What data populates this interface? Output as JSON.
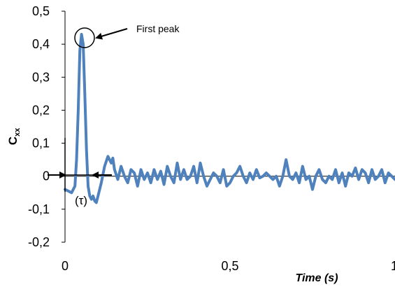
{
  "chart_data": {
    "type": "line",
    "title": "",
    "xlabel": "Time (s)",
    "ylabel_main": "C",
    "ylabel_sub": "xx",
    "xlim": [
      0,
      1
    ],
    "ylim": [
      -0.2,
      0.5
    ],
    "x_ticks": [
      "0",
      "0,5",
      "1"
    ],
    "y_ticks": [
      "0,5",
      "0,4",
      "0,3",
      "0,2",
      "0,1",
      "0",
      "-0,1",
      "-0,2"
    ],
    "grid": false,
    "line_color": "#4f81bd",
    "series": [
      {
        "x": [
          0.0,
          0.01,
          0.02,
          0.03,
          0.035,
          0.04,
          0.045,
          0.05,
          0.055,
          0.06,
          0.065,
          0.07,
          0.075,
          0.08,
          0.085,
          0.09,
          0.095,
          0.1,
          0.11,
          0.12,
          0.13,
          0.14,
          0.145,
          0.15,
          0.16,
          0.17,
          0.18,
          0.19,
          0.2,
          0.21,
          0.22,
          0.23,
          0.24,
          0.25,
          0.26,
          0.27,
          0.28,
          0.29,
          0.3,
          0.31,
          0.32,
          0.33,
          0.34,
          0.35,
          0.36,
          0.37,
          0.38,
          0.39,
          0.4,
          0.41,
          0.42,
          0.43,
          0.44,
          0.45,
          0.46,
          0.47,
          0.48,
          0.49,
          0.5,
          0.51,
          0.52,
          0.53,
          0.54,
          0.55,
          0.56,
          0.57,
          0.58,
          0.59,
          0.6,
          0.61,
          0.62,
          0.63,
          0.64,
          0.65,
          0.66,
          0.67,
          0.68,
          0.69,
          0.7,
          0.71,
          0.72,
          0.73,
          0.74,
          0.75,
          0.76,
          0.77,
          0.78,
          0.79,
          0.8,
          0.81,
          0.82,
          0.83,
          0.84,
          0.85,
          0.86,
          0.87,
          0.88,
          0.89,
          0.9,
          0.91,
          0.92,
          0.93,
          0.94,
          0.95,
          0.96,
          0.97,
          0.98,
          0.99,
          1.0
        ],
        "y": [
          -0.04,
          -0.045,
          -0.05,
          -0.03,
          0.05,
          0.2,
          0.38,
          0.43,
          0.4,
          0.25,
          0.08,
          -0.03,
          -0.06,
          -0.07,
          -0.06,
          -0.075,
          -0.08,
          -0.06,
          -0.02,
          0.03,
          0.06,
          0.04,
          0.055,
          0.02,
          -0.01,
          0.03,
          0.0,
          -0.02,
          0.02,
          0.01,
          -0.03,
          0.02,
          -0.01,
          0.01,
          -0.02,
          0.02,
          -0.01,
          0.015,
          -0.025,
          0.03,
          0.0,
          -0.02,
          0.04,
          -0.01,
          0.02,
          -0.01,
          0.0,
          0.03,
          -0.02,
          0.04,
          0.0,
          -0.03,
          -0.01,
          0.01,
          0.0,
          -0.02,
          0.02,
          -0.03,
          -0.02,
          0.0,
          0.01,
          0.03,
          0.0,
          -0.02,
          0.01,
          -0.01,
          0.02,
          -0.005,
          0.0,
          0.01,
          0.0,
          -0.01,
          0.0,
          -0.03,
          0.0,
          0.05,
          0.0,
          -0.01,
          0.01,
          -0.02,
          0.03,
          -0.01,
          0.0,
          -0.04,
          0.0,
          0.02,
          -0.01,
          -0.02,
          0.0,
          -0.01,
          0.02,
          -0.02,
          0.01,
          -0.03,
          0.01,
          0.0,
          0.025,
          -0.01,
          0.02,
          0.01,
          -0.02,
          0.02,
          -0.01,
          0.0,
          0.02,
          -0.02,
          0.01,
          0.0,
          -0.01
        ]
      }
    ],
    "annotations": {
      "first_peak": "First peak",
      "tau": "(τ)"
    }
  }
}
